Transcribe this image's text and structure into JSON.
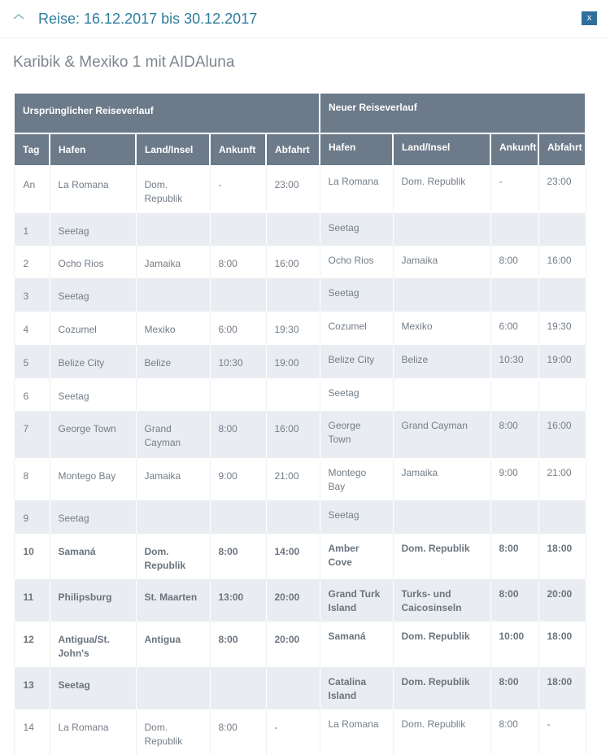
{
  "header": {
    "title": "Reise: 16.12.2017 bis 30.12.2017",
    "close_label": "x",
    "collapse_icon": "chevron-up-icon"
  },
  "subtitle": "Karibik & Mexiko 1 mit AIDAluna",
  "table": {
    "group_original": "Ursprünglicher Reiseverlauf",
    "group_new": "Neuer Reiseverlauf",
    "columns_original": [
      "Tag",
      "Hafen",
      "Land/Insel",
      "Ankunft",
      "Abfahrt"
    ],
    "columns_new": [
      "Hafen",
      "Land/Insel",
      "Ankunft",
      "Abfahrt"
    ],
    "rows": [
      {
        "tag": "An",
        "orig": [
          "La Romana",
          "Dom. Republik",
          "-",
          "23:00"
        ],
        "neu": [
          "La Romana",
          "Dom. Republik",
          "-",
          "23:00"
        ],
        "bold": false,
        "h": 58
      },
      {
        "tag": "1",
        "orig": [
          "Seetag",
          "",
          "",
          ""
        ],
        "neu": [
          "Seetag",
          "",
          "",
          ""
        ],
        "bold": false,
        "h": 40
      },
      {
        "tag": "2",
        "orig": [
          "Ocho Rios",
          "Jamaika",
          "8:00",
          "16:00"
        ],
        "neu": [
          "Ocho Rios",
          "Jamaika",
          "8:00",
          "16:00"
        ],
        "bold": false,
        "h": 40
      },
      {
        "tag": "3",
        "orig": [
          "Seetag",
          "",
          "",
          ""
        ],
        "neu": [
          "Seetag",
          "",
          "",
          ""
        ],
        "bold": false,
        "h": 41
      },
      {
        "tag": "4",
        "orig": [
          "Cozumel",
          "Mexiko",
          "6:00",
          "19:30"
        ],
        "neu": [
          "Cozumel",
          "Mexiko",
          "6:00",
          "19:30"
        ],
        "bold": false,
        "h": 41
      },
      {
        "tag": "5",
        "orig": [
          "Belize City",
          "Belize",
          "10:30",
          "19:00"
        ],
        "neu": [
          "Belize City",
          "Belize",
          "10:30",
          "19:00"
        ],
        "bold": false,
        "h": 41
      },
      {
        "tag": "6",
        "orig": [
          "Seetag",
          "",
          "",
          ""
        ],
        "neu": [
          "Seetag",
          "",
          "",
          ""
        ],
        "bold": false,
        "h": 40
      },
      {
        "tag": "7",
        "orig": [
          "George Town",
          "Grand Cayman",
          "8:00",
          "16:00"
        ],
        "neu": [
          "George Town",
          "Grand Cayman",
          "8:00",
          "16:00"
        ],
        "bold": false,
        "h": 58
      },
      {
        "tag": "8",
        "orig": [
          "Montego Bay",
          "Jamaika",
          "9:00",
          "21:00"
        ],
        "neu": [
          "Montego Bay",
          "Jamaika",
          "9:00",
          "21:00"
        ],
        "bold": false,
        "h": 40
      },
      {
        "tag": "9",
        "orig": [
          "Seetag",
          "",
          "",
          ""
        ],
        "neu": [
          "Seetag",
          "",
          "",
          ""
        ],
        "bold": false,
        "h": 41
      },
      {
        "tag": "10",
        "orig": [
          "Samaná",
          "Dom. Republik",
          "8:00",
          "14:00"
        ],
        "neu": [
          "Amber Cove",
          "Dom. Republik",
          "8:00",
          "18:00"
        ],
        "bold": true,
        "h": 56
      },
      {
        "tag": "11",
        "orig": [
          "Philipsburg",
          "St. Maarten",
          "13:00",
          "20:00"
        ],
        "neu": [
          "Grand Turk Island",
          "Turks- und Caicosinseln",
          "8:00",
          "20:00"
        ],
        "bold": true,
        "h": 50
      },
      {
        "tag": "12",
        "orig": [
          "Antigua/St. John's",
          "Antigua",
          "8:00",
          "20:00"
        ],
        "neu": [
          "Samaná",
          "Dom. Republik",
          "10:00",
          "18:00"
        ],
        "bold": true,
        "h": 56
      },
      {
        "tag": "13",
        "orig": [
          "Seetag",
          "",
          "",
          ""
        ],
        "neu": [
          "Catalina Island",
          "Dom. Republik",
          "8:00",
          "18:00"
        ],
        "bold": true,
        "h": 52
      },
      {
        "tag": "14",
        "orig": [
          "La Romana",
          "Dom. Republik",
          "8:00",
          "-"
        ],
        "neu": [
          "La Romana",
          "Dom. Republik",
          "8:00",
          "-"
        ],
        "bold": false,
        "h": 55
      }
    ]
  },
  "colors": {
    "header_bg": "#6c7a8a",
    "alt_row": "#e9edf1",
    "title": "#2f7d9e",
    "close_bg": "#2f6f9c"
  }
}
